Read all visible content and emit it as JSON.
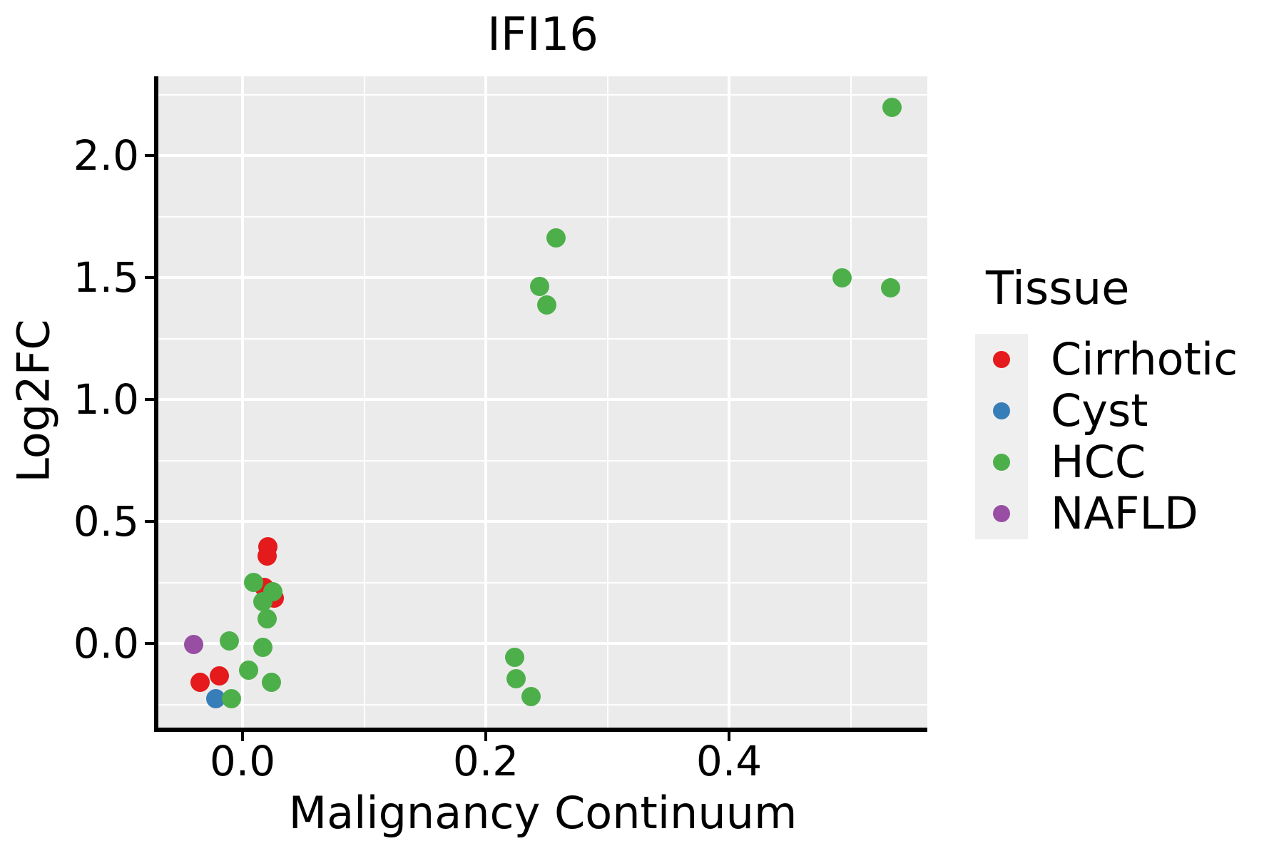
{
  "title": "IFI16",
  "x_axis": {
    "label": "Malignancy Continuum",
    "tick_labels": [
      "0.0",
      "0.2",
      "0.4"
    ],
    "tick_values": [
      0.0,
      0.2,
      0.4
    ]
  },
  "y_axis": {
    "label": "Log2FC",
    "tick_labels": [
      "0.0",
      "0.5",
      "1.0",
      "1.5",
      "2.0"
    ],
    "tick_values": [
      0.0,
      0.5,
      1.0,
      1.5,
      2.0
    ]
  },
  "legend": {
    "title": "Tissue",
    "entries": [
      {
        "label": "Cirrhotic",
        "color": "#E41A1C"
      },
      {
        "label": "Cyst",
        "color": "#377EB8"
      },
      {
        "label": "HCC",
        "color": "#4DAF4A"
      },
      {
        "label": "NAFLD",
        "color": "#984EA3"
      }
    ]
  },
  "colors": {
    "panel_background": "#EBEBEB",
    "gridline": "#FFFFFF",
    "axis": "#000000",
    "legend_key_background": "#EFEFEF"
  },
  "chart_data": {
    "type": "scatter",
    "title": "IFI16",
    "xlabel": "Malignancy Continuum",
    "ylabel": "Log2FC",
    "xlim": [
      -0.0692,
      0.563
    ],
    "ylim": [
      -0.345,
      2.325
    ],
    "x_major_breaks": [
      0.0,
      0.2,
      0.4
    ],
    "x_minor_breaks": [
      0.1,
      0.3,
      0.5
    ],
    "y_major_breaks": [
      0.0,
      0.5,
      1.0,
      1.5,
      2.0
    ],
    "y_minor_breaks": [
      -0.25,
      0.25,
      0.75,
      1.25,
      1.75,
      2.25
    ],
    "grid": true,
    "legend_position": "right",
    "legend_title": "Tissue",
    "series": [
      {
        "name": "Cirrhotic",
        "color": "#E41A1C",
        "points": [
          [
            0.021,
            0.395
          ],
          [
            0.02,
            0.357
          ],
          [
            0.018,
            0.23
          ],
          [
            0.026,
            0.185
          ],
          [
            -0.035,
            -0.158
          ],
          [
            -0.019,
            -0.134
          ]
        ]
      },
      {
        "name": "Cyst",
        "color": "#377EB8",
        "points": [
          [
            -0.022,
            -0.226
          ]
        ]
      },
      {
        "name": "HCC",
        "color": "#4DAF4A",
        "points": [
          [
            0.534,
            2.199
          ],
          [
            0.493,
            1.5
          ],
          [
            0.533,
            1.459
          ],
          [
            0.258,
            1.664
          ],
          [
            0.244,
            1.465
          ],
          [
            0.25,
            1.389
          ],
          [
            0.009,
            0.25
          ],
          [
            0.025,
            0.213
          ],
          [
            0.017,
            0.172
          ],
          [
            0.02,
            0.1
          ],
          [
            -0.011,
            0.011
          ],
          [
            0.017,
            -0.016
          ],
          [
            0.005,
            -0.109
          ],
          [
            0.024,
            -0.158
          ],
          [
            -0.009,
            -0.228
          ],
          [
            0.224,
            -0.058
          ],
          [
            0.225,
            -0.146
          ],
          [
            0.237,
            -0.219
          ]
        ]
      },
      {
        "name": "NAFLD",
        "color": "#984EA3",
        "points": [
          [
            -0.04,
            -0.004
          ]
        ]
      }
    ]
  }
}
